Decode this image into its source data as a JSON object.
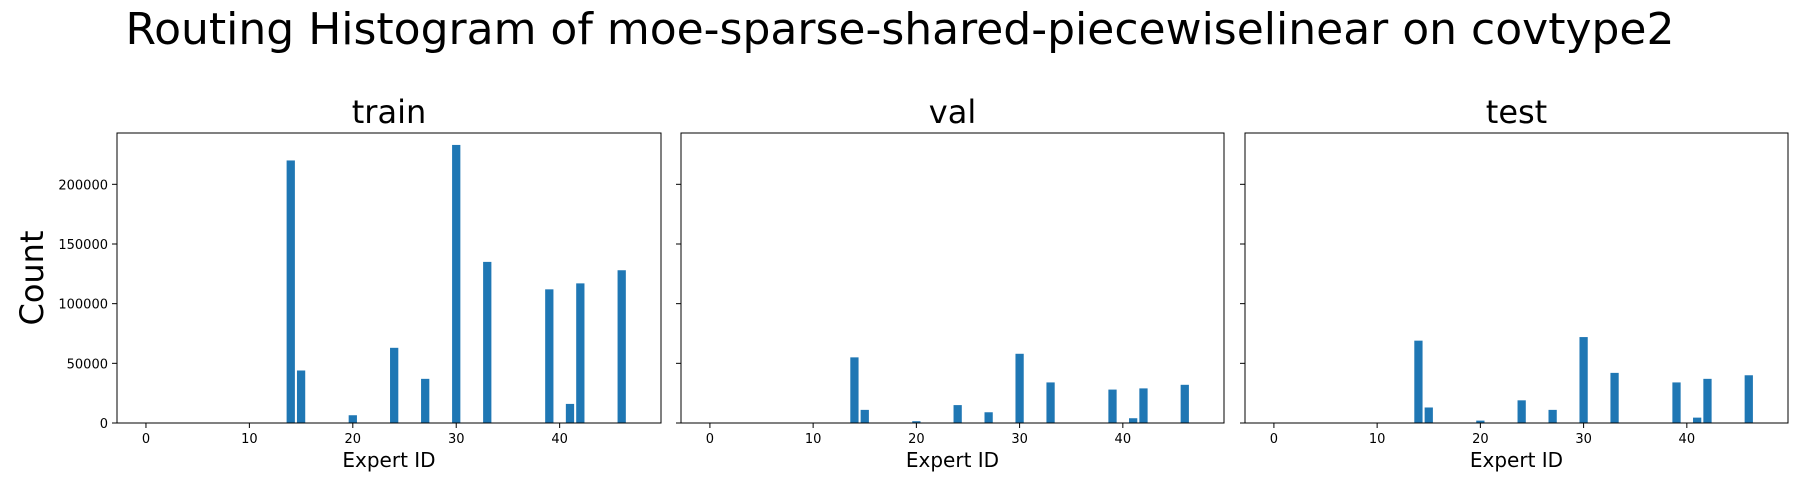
{
  "title": "Routing Histogram of moe-sparse-shared-piecewiselinear on covtype2",
  "ylabel": "Count",
  "bar_color": "#1f77b4",
  "chart_data": [
    {
      "type": "bar",
      "title": "train",
      "xlabel": "Expert ID",
      "ylabel": "Count",
      "xlim": [
        -2.8,
        49.8
      ],
      "ylim": [
        0,
        243000
      ],
      "xticks": [
        0,
        10,
        20,
        30,
        40
      ],
      "yticks": [
        0,
        50000,
        100000,
        150000,
        200000
      ],
      "x": [
        14,
        15,
        20,
        24,
        27,
        30,
        33,
        39,
        41,
        42,
        46
      ],
      "values": [
        220000,
        44000,
        6500,
        63000,
        37000,
        233000,
        135000,
        112000,
        16000,
        117000,
        128000
      ]
    },
    {
      "type": "bar",
      "title": "val",
      "xlabel": "Expert ID",
      "ylabel": "Count",
      "xlim": [
        -2.8,
        49.8
      ],
      "ylim": [
        0,
        243000
      ],
      "xticks": [
        0,
        10,
        20,
        30,
        40
      ],
      "yticks": [
        0,
        50000,
        100000,
        150000,
        200000
      ],
      "x": [
        14,
        15,
        20,
        24,
        27,
        30,
        33,
        39,
        41,
        42,
        46
      ],
      "values": [
        55000,
        11000,
        1500,
        15000,
        9000,
        58000,
        34000,
        28000,
        4000,
        29000,
        32000
      ]
    },
    {
      "type": "bar",
      "title": "test",
      "xlabel": "Expert ID",
      "ylabel": "Count",
      "xlim": [
        -2.8,
        49.8
      ],
      "ylim": [
        0,
        243000
      ],
      "xticks": [
        0,
        10,
        20,
        30,
        40
      ],
      "yticks": [
        0,
        50000,
        100000,
        150000,
        200000
      ],
      "x": [
        14,
        15,
        20,
        24,
        27,
        30,
        33,
        39,
        41,
        42,
        46
      ],
      "values": [
        69000,
        13000,
        2000,
        19000,
        11000,
        72000,
        42000,
        34000,
        4500,
        37000,
        40000
      ]
    }
  ]
}
